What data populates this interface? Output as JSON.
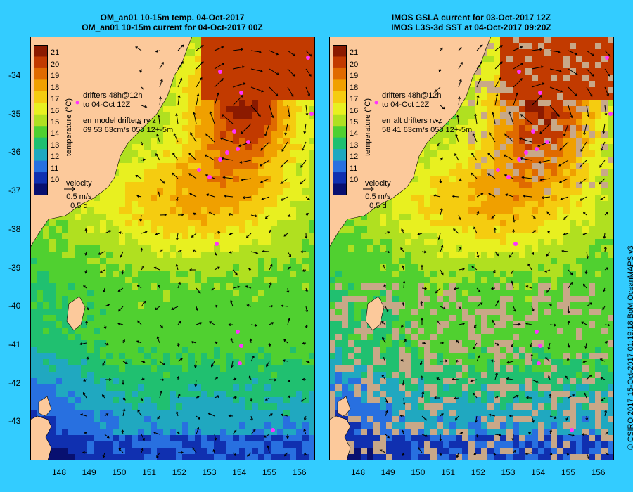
{
  "left_panel": {
    "title_line1": "OM_an01 10-15m temp. 04-Oct-2017",
    "title_line2": "OM_an01 10-15m current for 04-Oct-2017 00Z",
    "drifters_line1": "drifters 48h@12h",
    "drifters_line2": "to 04-Oct 12Z",
    "err_line1": "err model drifters rv z",
    "err_line2": "69 53 63cm/s 058 12+-5m",
    "velocity_label": "velocity",
    "velocity_value1": "0.5 m/s",
    "velocity_value2": "0.5 d"
  },
  "right_panel": {
    "title_line1": "IMOS GSLA current for 03-Oct-2017 12Z",
    "title_line2": "IMOS L3S-3d SST at 04-Oct-2017 09:20Z",
    "drifters_line1": "drifters 48h@12h",
    "drifters_line2": "to 04-Oct 12Z",
    "err_line1": "err alt drifters rv z",
    "err_line2": "58 41 63cm/s 058 12+-5m",
    "velocity_label": "velocity",
    "velocity_value1": "0.5 m/s",
    "velocity_value2": "0.5 d"
  },
  "colorbar": {
    "label": "temperature (°C)",
    "ticks": [
      "21",
      "20",
      "19",
      "18",
      "17",
      "16",
      "15",
      "14",
      "13",
      "12",
      "11",
      "10"
    ],
    "colors": [
      "#8b1a00",
      "#c23a00",
      "#e06a00",
      "#f0a000",
      "#f5cc10",
      "#e8f020",
      "#b0e020",
      "#50d030",
      "#20c070",
      "#20a8c0",
      "#2870e0",
      "#1030b0",
      "#081070"
    ]
  },
  "map": {
    "lat_labels": [
      "-34",
      "-35",
      "-36",
      "-37",
      "-38",
      "-39",
      "-40",
      "-41",
      "-42",
      "-43"
    ],
    "lon_labels": [
      "148",
      "149",
      "150",
      "151",
      "152",
      "153",
      "154",
      "155",
      "156"
    ],
    "land_color": "#fcc99b",
    "cloud_color": "#c8a888",
    "drifter_color": "#ff33ff"
  },
  "credit": "© CSIRO 2017  15-Oct-2017 01:19:18 BoM OceanMAPS v3"
}
